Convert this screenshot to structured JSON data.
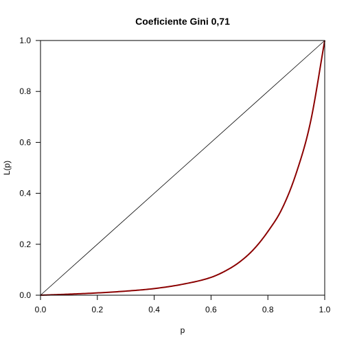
{
  "chart_data": {
    "type": "line",
    "title": "Coeficiente Gini 0,71",
    "xlabel": "p",
    "ylabel": "L(p)",
    "xlim": [
      0,
      1
    ],
    "ylim": [
      0,
      1
    ],
    "xticks": [
      "0.0",
      "0.2",
      "0.4",
      "0.6",
      "0.8",
      "1.0"
    ],
    "yticks": [
      "0.0",
      "0.2",
      "0.4",
      "0.6",
      "0.8",
      "1.0"
    ],
    "grid": false,
    "legend": "none",
    "colors": {
      "equality_line": "#000000",
      "lorenz_curve": "#8b0000"
    },
    "series": [
      {
        "x": [
          0,
          1
        ],
        "y": [
          0,
          1
        ]
      },
      {
        "x": [
          0.0,
          0.1,
          0.2,
          0.3,
          0.4,
          0.5,
          0.6,
          0.65,
          0.7,
          0.75,
          0.8,
          0.85,
          0.9,
          0.95,
          1.0
        ],
        "y": [
          0.0,
          0.004,
          0.009,
          0.016,
          0.026,
          0.043,
          0.07,
          0.095,
          0.13,
          0.18,
          0.25,
          0.34,
          0.48,
          0.68,
          1.0
        ]
      }
    ]
  }
}
